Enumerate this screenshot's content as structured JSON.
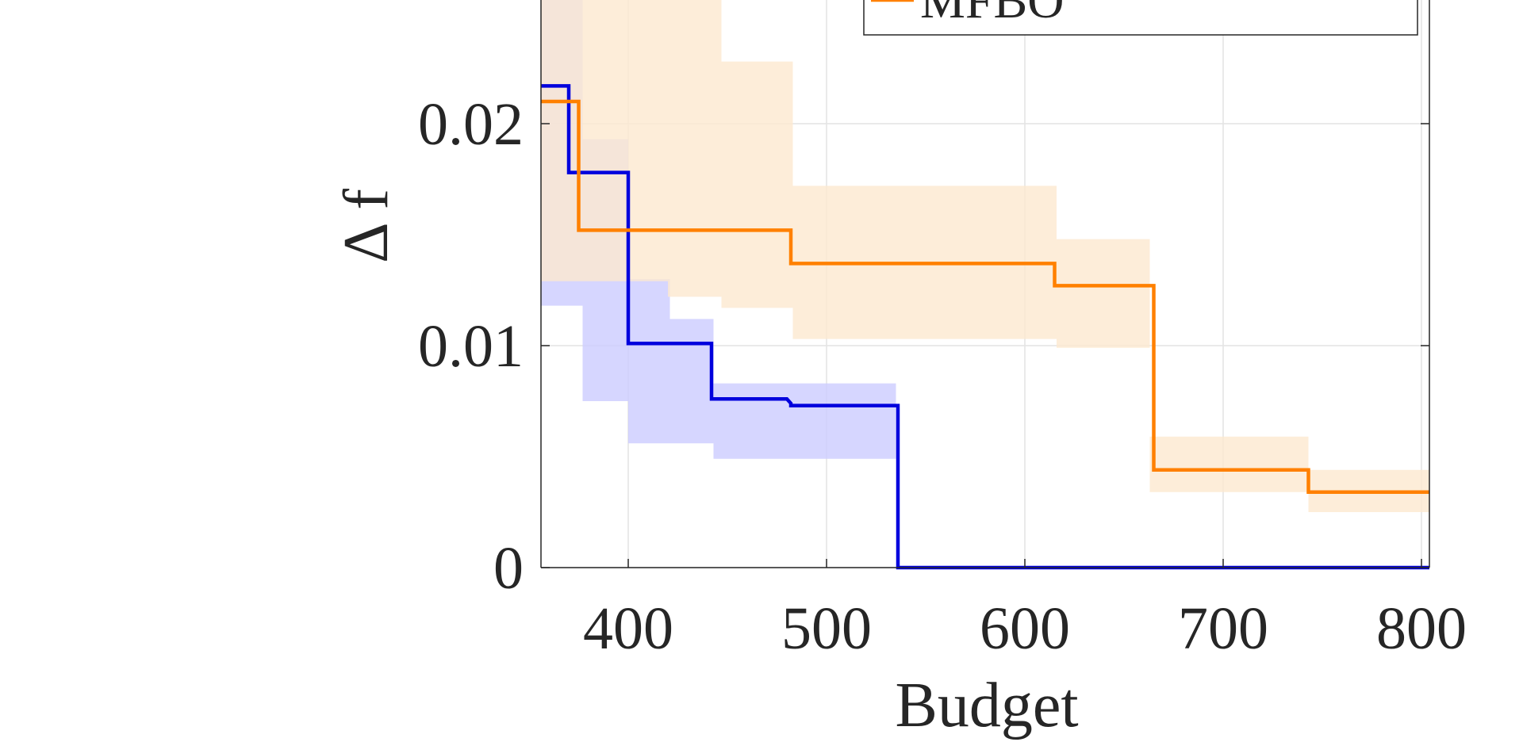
{
  "chart_data": {
    "type": "line",
    "xlabel": "Budget",
    "ylabel": "Δ f",
    "xlim": [
      356,
      804
    ],
    "ylim": [
      0,
      0.027
    ],
    "x_ticks": [
      400,
      500,
      600,
      700,
      800
    ],
    "x_tick_labels": [
      "400",
      "500",
      "600",
      "700",
      "800"
    ],
    "y_ticks": [
      0,
      0.01,
      0.02
    ],
    "y_tick_labels": [
      "0",
      "0.01",
      "0.02"
    ],
    "grid": true,
    "legend_position": "top-right",
    "series": [
      {
        "color": "#0000dd",
        "band_color": "#ccccff",
        "x": [
          356,
          370,
          370,
          400,
          400,
          442,
          442,
          480,
          480,
          482,
          482,
          536,
          536,
          804
        ],
        "y": [
          0.0217,
          0.0217,
          0.0178,
          0.0178,
          0.0101,
          0.0101,
          0.0076,
          0.0076,
          0.0076,
          0.0074,
          0.0073,
          0.0073,
          0.0,
          0.0
        ],
        "band_x": [
          356,
          377,
          377,
          400,
          400,
          421,
          421,
          443,
          443,
          535
        ],
        "band_upper": [
          0.0265,
          0.0265,
          0.0193,
          0.0193,
          0.013,
          0.013,
          0.0112,
          0.0112,
          0.0083,
          0.0083
        ],
        "band_lower": [
          0.0118,
          0.0118,
          0.0075,
          0.0075,
          0.0056,
          0.0056,
          0.0056,
          0.0056,
          0.0049,
          0.0049
        ]
      },
      {
        "name": "MFBO",
        "color": "#ff8000",
        "band_color": "#fde8d0",
        "x": [
          356,
          375,
          375,
          482,
          482,
          615,
          615,
          665,
          665,
          743,
          743,
          804
        ],
        "y": [
          0.021,
          0.021,
          0.0152,
          0.0152,
          0.0137,
          0.0137,
          0.0127,
          0.0127,
          0.0044,
          0.0044,
          0.0034,
          0.0034
        ],
        "band_x": [
          356,
          420,
          420,
          447,
          447,
          483,
          483,
          616,
          616,
          661,
          661,
          663,
          663,
          743,
          743,
          804
        ],
        "band_upper": [
          0.027,
          0.027,
          0.027,
          0.027,
          0.0228,
          0.0228,
          0.0172,
          0.0172,
          0.0148,
          0.0148,
          0.0148,
          0.0148,
          0.0059,
          0.0059,
          0.0044,
          0.0044
        ],
        "band_lower": [
          0.0129,
          0.0129,
          0.0122,
          0.0122,
          0.0117,
          0.0117,
          0.0103,
          0.0103,
          0.0099,
          0.0099,
          0.0099,
          0.0099,
          0.0034,
          0.0034,
          0.0025,
          0.0025
        ]
      }
    ]
  }
}
